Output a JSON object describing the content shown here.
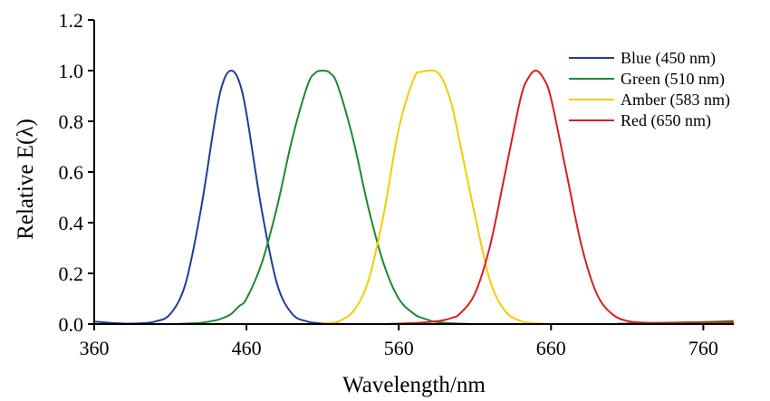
{
  "chart_data": {
    "type": "line",
    "xlabel": "Wavelength/nm",
    "ylabel": "Relative E(λ)",
    "xlim": [
      360,
      780
    ],
    "ylim": [
      0,
      1.2
    ],
    "x_ticks": [
      360,
      460,
      560,
      660,
      760
    ],
    "y_ticks": [
      "0.0",
      "0.2",
      "0.4",
      "0.6",
      "0.8",
      "1.0",
      "1.2"
    ],
    "grid": false,
    "legend_position": "top-right",
    "x": [
      360,
      370,
      380,
      390,
      400,
      410,
      420,
      430,
      440,
      445,
      450,
      455,
      460,
      470,
      480,
      490,
      500,
      505,
      510,
      515,
      520,
      530,
      540,
      550,
      560,
      570,
      575,
      580,
      583,
      586,
      590,
      595,
      600,
      610,
      620,
      630,
      640,
      645,
      650,
      655,
      660,
      670,
      680,
      690,
      700,
      710,
      720,
      730,
      740,
      750,
      760,
      770,
      780
    ],
    "series": [
      {
        "name": "Blue (450 nm)",
        "color": "#1f3c99",
        "values": [
          0.01,
          0.005,
          0.002,
          0.003,
          0.01,
          0.04,
          0.16,
          0.45,
          0.83,
          0.96,
          1.0,
          0.96,
          0.83,
          0.45,
          0.16,
          0.04,
          0.01,
          0.005,
          0.003,
          0.002,
          0.001,
          0.0,
          0.0,
          0.0,
          0.0,
          0.0,
          0.0,
          0.0,
          0.0,
          0.0,
          0.0,
          0.0,
          0.0,
          0.0,
          0.0,
          0.0,
          0.0,
          0.0,
          0.0,
          0.0,
          0.0,
          0.0,
          0.0,
          0.0,
          0.0,
          0.002,
          0.003,
          0.003,
          0.003,
          0.003,
          0.004,
          0.005,
          0.006
        ]
      },
      {
        "name": "Green (510 nm)",
        "color": "#1a8a2e",
        "values": [
          0.0,
          0.0,
          0.0,
          0.0,
          0.0,
          0.0,
          0.002,
          0.005,
          0.015,
          0.025,
          0.04,
          0.07,
          0.1,
          0.24,
          0.46,
          0.73,
          0.94,
          0.99,
          1.0,
          0.99,
          0.94,
          0.73,
          0.46,
          0.24,
          0.1,
          0.04,
          0.025,
          0.015,
          0.01,
          0.007,
          0.005,
          0.003,
          0.002,
          0.0,
          0.0,
          0.0,
          0.0,
          0.0,
          0.0,
          0.0,
          0.0,
          0.0,
          0.0,
          0.0,
          0.0,
          0.002,
          0.004,
          0.005,
          0.006,
          0.007,
          0.008,
          0.01,
          0.012
        ]
      },
      {
        "name": "Amber (583 nm)",
        "color": "#f5cc00",
        "values": [
          0.0,
          0.0,
          0.0,
          0.0,
          0.0,
          0.0,
          0.0,
          0.0,
          0.0,
          0.0,
          0.0,
          0.0,
          0.0,
          0.0,
          0.0,
          0.0,
          0.0,
          0.0,
          0.002,
          0.005,
          0.01,
          0.05,
          0.17,
          0.43,
          0.77,
          0.97,
          0.995,
          1.0,
          1.0,
          0.99,
          0.95,
          0.86,
          0.72,
          0.43,
          0.17,
          0.05,
          0.012,
          0.006,
          0.003,
          0.002,
          0.0,
          0.0,
          0.0,
          0.0,
          0.0,
          0.0,
          0.0,
          0.0,
          0.002,
          0.003,
          0.004,
          0.004,
          0.004
        ]
      },
      {
        "name": "Red (650 nm)",
        "color": "#d81e1e",
        "values": [
          0.0,
          0.0,
          0.0,
          0.0,
          0.0,
          0.0,
          0.0,
          0.0,
          0.0,
          0.0,
          0.0,
          0.0,
          0.0,
          0.0,
          0.0,
          0.0,
          0.0,
          0.0,
          0.0,
          0.0,
          0.0,
          0.0,
          0.0,
          0.0,
          0.002,
          0.004,
          0.006,
          0.008,
          0.01,
          0.012,
          0.016,
          0.025,
          0.04,
          0.12,
          0.31,
          0.6,
          0.89,
          0.97,
          1.0,
          0.97,
          0.89,
          0.6,
          0.31,
          0.12,
          0.04,
          0.012,
          0.006,
          0.004,
          0.004,
          0.004,
          0.005,
          0.006,
          0.007
        ]
      }
    ]
  }
}
